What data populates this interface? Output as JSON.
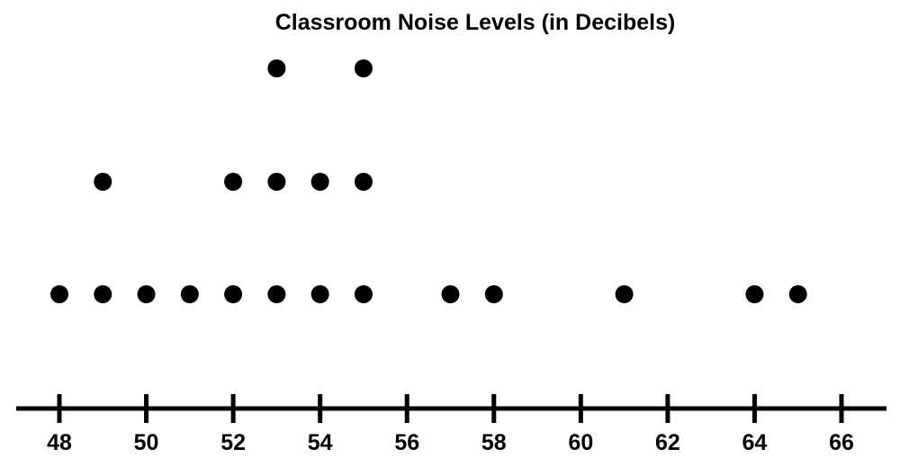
{
  "chart_data": {
    "type": "scatter",
    "title": "Classroom Noise Levels (in Decibels)",
    "xlabel": "",
    "ylabel": "",
    "xlim": [
      48,
      66
    ],
    "x_ticks": [
      48,
      50,
      52,
      54,
      56,
      58,
      60,
      62,
      64,
      66
    ],
    "tick_labels": [
      "48",
      "50",
      "52",
      "54",
      "56",
      "58",
      "60",
      "62",
      "64",
      "66"
    ],
    "points": [
      {
        "x": 48,
        "count": 1
      },
      {
        "x": 49,
        "count": 2
      },
      {
        "x": 50,
        "count": 1
      },
      {
        "x": 51,
        "count": 1
      },
      {
        "x": 52,
        "count": 2
      },
      {
        "x": 53,
        "count": 3
      },
      {
        "x": 54,
        "count": 2
      },
      {
        "x": 55,
        "count": 3
      },
      {
        "x": 57,
        "count": 1
      },
      {
        "x": 58,
        "count": 1
      },
      {
        "x": 61,
        "count": 1
      },
      {
        "x": 64,
        "count": 1
      },
      {
        "x": 65,
        "count": 1
      }
    ],
    "grid": false,
    "dot_color": "#000000",
    "axis_color": "#000000"
  }
}
